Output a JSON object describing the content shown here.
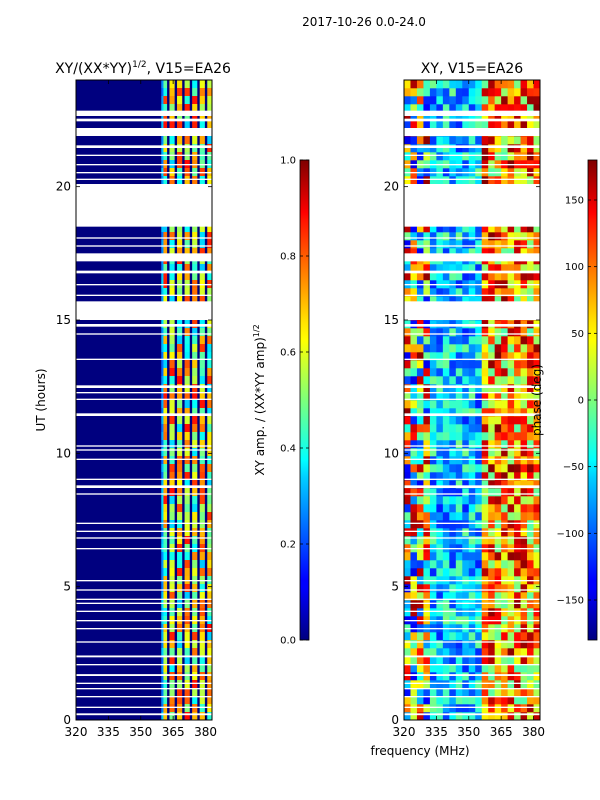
{
  "suptitle": "2017-10-26 0.0-24.0",
  "colors": {
    "background": "#ffffff",
    "axis": "#000000",
    "gap": "#ffffff",
    "jet_low": "#00007f",
    "jet_high": "#7f0000"
  },
  "chart_data": [
    {
      "type": "heatmap",
      "title": "XY/(XX*YY)",
      "title_sup": "1/2",
      "title_suffix": ", V15=EA26",
      "xlabel": "",
      "ylabel": "UT (hours)",
      "xlim": [
        320,
        383
      ],
      "ylim": [
        0,
        24
      ],
      "xticks": [
        320,
        335,
        350,
        365,
        380
      ],
      "yticks": [
        0,
        5,
        10,
        15,
        20
      ],
      "description": "normalized XY amplitude vs frequency and UT; low (dark blue) below ~360 MHz, bright channel stripes 360-383 MHz",
      "stripe_channels_mhz": [
        361,
        364.5,
        368,
        371.5,
        375,
        378.5,
        382
      ],
      "colorbar": {
        "label": "XY amp. / (XX*YY amp)",
        "label_sup": "1/2",
        "range": [
          0.0,
          1.0
        ],
        "ticks": [
          0.0,
          0.2,
          0.4,
          0.6,
          0.8,
          1.0
        ],
        "tick_labels": [
          "0.0",
          "0.2",
          "0.4",
          "0.6",
          "0.8",
          "1.0"
        ],
        "colormap": "jet"
      }
    },
    {
      "type": "heatmap",
      "title": "XY, V15=EA26",
      "xlabel": "frequency (MHz)",
      "ylabel": "",
      "xlim": [
        320,
        383
      ],
      "ylim": [
        0,
        24
      ],
      "xticks": [
        320,
        335,
        350,
        365,
        380
      ],
      "yticks": [
        0,
        5,
        10,
        15,
        20
      ],
      "description": "XY phase (deg) vs frequency and UT; mixed noisy phases across the band",
      "colorbar": {
        "label": "phase (deg)",
        "range": [
          -180,
          180
        ],
        "ticks": [
          -150,
          -100,
          -50,
          0,
          50,
          100,
          150
        ],
        "tick_labels": [
          "−150",
          "−100",
          "−50",
          "0",
          "50",
          "100",
          "150"
        ],
        "colormap": "jet"
      }
    }
  ],
  "flagged_ut_ranges": [
    [
      0.18,
      0.25
    ],
    [
      0.45,
      0.5
    ],
    [
      0.85,
      0.9
    ],
    [
      1.15,
      1.2
    ],
    [
      1.35,
      1.4
    ],
    [
      1.65,
      1.72
    ],
    [
      2.05,
      2.1
    ],
    [
      2.35,
      2.42
    ],
    [
      2.9,
      2.95
    ],
    [
      3.4,
      3.45
    ],
    [
      3.7,
      3.75
    ],
    [
      4.05,
      4.1
    ],
    [
      4.35,
      4.4
    ],
    [
      4.5,
      4.55
    ],
    [
      4.85,
      4.9
    ],
    [
      5.2,
      5.25
    ],
    [
      6.4,
      6.45
    ],
    [
      6.8,
      6.85
    ],
    [
      7.05,
      7.1
    ],
    [
      7.35,
      7.4
    ],
    [
      8.45,
      8.5
    ],
    [
      8.7,
      8.8
    ],
    [
      9.0,
      9.05
    ],
    [
      9.75,
      9.8
    ],
    [
      10.1,
      10.15
    ],
    [
      10.25,
      10.3
    ],
    [
      11.4,
      11.5
    ],
    [
      12.0,
      12.05
    ],
    [
      12.25,
      12.3
    ],
    [
      12.45,
      12.55
    ],
    [
      13.5,
      13.55
    ],
    [
      14.45,
      14.5
    ],
    [
      14.75,
      14.85
    ],
    [
      15.0,
      15.7
    ],
    [
      15.9,
      15.95
    ],
    [
      16.3,
      16.35
    ],
    [
      16.75,
      16.85
    ],
    [
      17.2,
      17.5
    ],
    [
      17.75,
      17.8
    ],
    [
      18.05,
      18.1
    ],
    [
      18.5,
      20.1
    ],
    [
      20.25,
      20.3
    ],
    [
      20.5,
      20.55
    ],
    [
      20.8,
      20.85
    ],
    [
      21.15,
      21.2
    ],
    [
      21.45,
      21.55
    ],
    [
      21.9,
      22.2
    ],
    [
      22.45,
      22.55
    ],
    [
      22.65,
      22.85
    ]
  ]
}
